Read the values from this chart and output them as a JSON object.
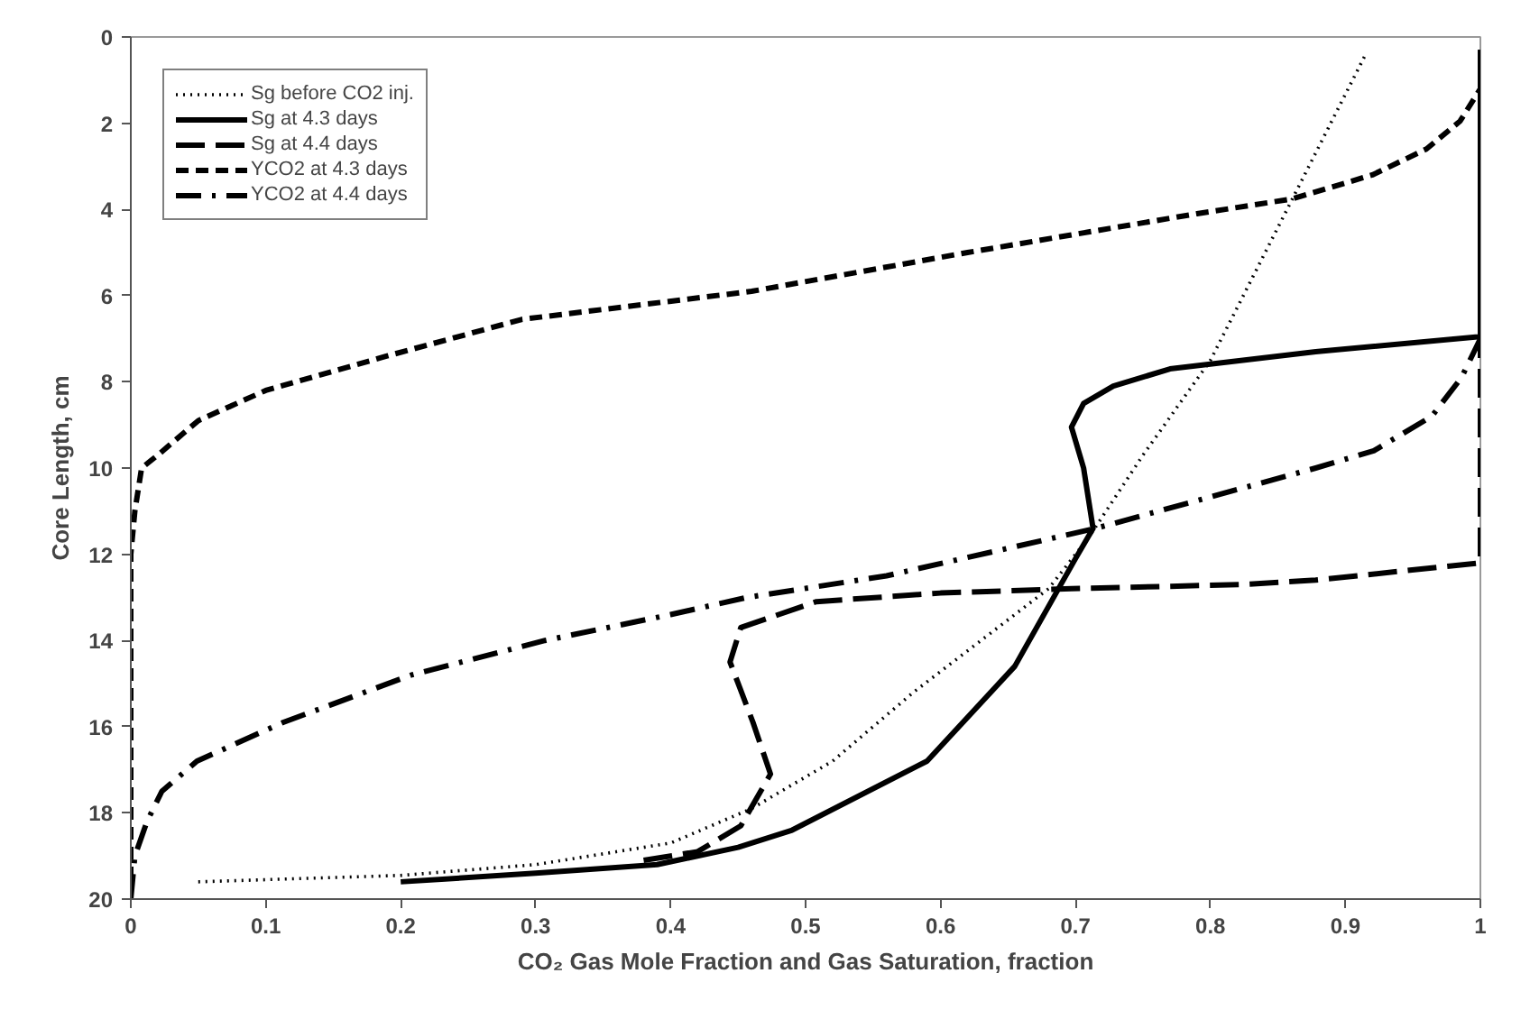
{
  "chart_data": {
    "type": "line",
    "xlabel": "CO₂ Gas Mole Fraction and Gas Saturation, fraction",
    "ylabel": "Core Length, cm",
    "xlim": [
      0,
      1
    ],
    "ylim": [
      20,
      0
    ],
    "xticks": [
      0,
      0.1,
      0.2,
      0.3,
      0.4,
      0.5,
      0.6,
      0.7,
      0.8,
      0.9,
      1
    ],
    "yticks": [
      0,
      2,
      4,
      6,
      8,
      10,
      12,
      14,
      16,
      18,
      20
    ],
    "grid": false,
    "legend": "top left",
    "marker": "none",
    "series": [
      {
        "name": "Sg before CO2 inj.",
        "color": "#000000",
        "line_style": "dotted",
        "x": [
          0.05,
          0.2,
          0.3,
          0.4,
          0.46,
          0.52,
          0.58,
          0.63,
          0.68,
          0.71,
          0.75,
          0.8,
          0.86,
          0.915
        ],
        "values": [
          19.6,
          19.45,
          19.2,
          18.7,
          17.9,
          16.8,
          15.2,
          14.0,
          12.8,
          11.6,
          9.7,
          7.5,
          3.8,
          0.4
        ]
      },
      {
        "name": "Sg at 4.3 days",
        "color": "#000000",
        "line_style": "solid",
        "x": [
          0.2,
          0.3,
          0.39,
          0.45,
          0.49,
          0.59,
          0.655,
          0.7,
          0.713,
          0.706,
          0.697,
          0.706,
          0.728,
          0.77,
          0.878,
          1,
          1
        ],
        "values": [
          19.6,
          19.4,
          19.2,
          18.8,
          18.4,
          16.8,
          14.6,
          12.1,
          11.4,
          10.0,
          9.05,
          8.5,
          8.1,
          7.7,
          7.3,
          6.95,
          0.3
        ]
      },
      {
        "name": "Sg at 4.4 days",
        "color": "#000000",
        "line_style": "longdash",
        "x": [
          0.38,
          0.42,
          0.452,
          0.474,
          0.461,
          0.444,
          0.452,
          0.508,
          0.6,
          0.697,
          0.826,
          0.878,
          1,
          1
        ],
        "values": [
          19.1,
          18.9,
          18.3,
          17.1,
          15.9,
          14.5,
          13.7,
          13.1,
          12.9,
          12.8,
          12.7,
          12.6,
          12.2,
          0.3
        ]
      },
      {
        "name": "YCO2 at 4.3 days",
        "color": "#000000",
        "line_style": "dashed",
        "x": [
          0,
          0,
          0.003,
          0.008,
          0.02,
          0.05,
          0.1,
          0.19,
          0.29,
          0.46,
          0.62,
          0.79,
          0.86,
          0.92,
          0.96,
          0.985,
          1,
          1
        ],
        "values": [
          20,
          12,
          11,
          10,
          9.7,
          8.9,
          8.2,
          7.4,
          6.55,
          5.9,
          5.0,
          4.1,
          3.76,
          3.2,
          2.6,
          1.95,
          1.2,
          0.3
        ]
      },
      {
        "name": "YCO2 at 4.4 days",
        "color": "#000000",
        "line_style": "dashdot",
        "x": [
          0,
          0.003,
          0.012,
          0.023,
          0.049,
          0.113,
          0.208,
          0.307,
          0.4,
          0.457,
          0.56,
          0.715,
          0.878,
          0.921,
          0.964,
          0.986,
          1
        ],
        "values": [
          20,
          19,
          18.2,
          17.5,
          16.8,
          15.9,
          14.8,
          14.0,
          13.4,
          13.0,
          12.5,
          11.4,
          10.0,
          9.6,
          8.8,
          7.9,
          7.0
        ]
      }
    ]
  }
}
